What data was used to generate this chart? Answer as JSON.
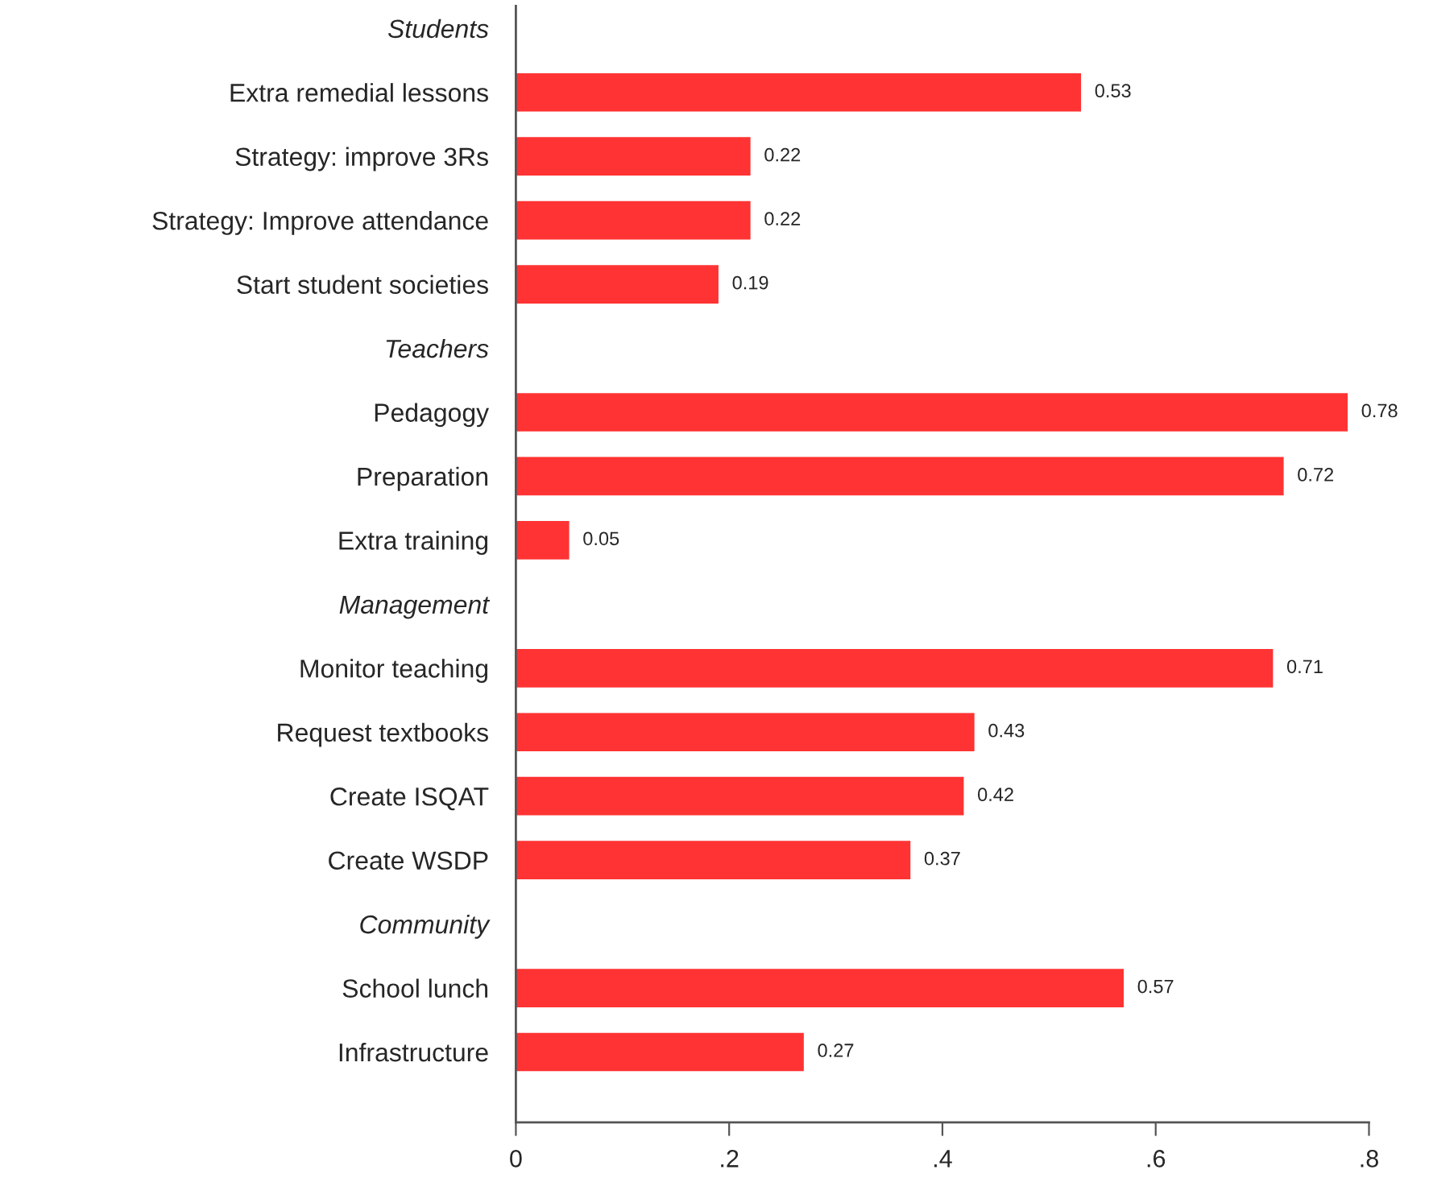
{
  "chart_data": {
    "type": "bar",
    "orientation": "horizontal",
    "categories": [
      "Students",
      "Extra remedial lessons",
      "Strategy: improve 3Rs",
      "Strategy: Improve attendance",
      "Start student societies",
      "Teachers",
      "Pedagogy",
      "Preparation",
      "Extra training",
      "Management",
      "Monitor teaching",
      "Request textbooks",
      "Create ISQAT",
      "Create WSDP",
      "Community",
      "School lunch",
      "Infrastructure"
    ],
    "values": [
      null,
      0.53,
      0.22,
      0.22,
      0.19,
      null,
      0.78,
      0.72,
      0.05,
      null,
      0.71,
      0.43,
      0.42,
      0.37,
      null,
      0.57,
      0.27
    ],
    "color": "#ff3333",
    "xlim": [
      0,
      0.8
    ],
    "xticks": [
      0,
      {
        "value": 0.2,
        "label": ".2"
      },
      {
        "value": 0.4,
        "label": ".4"
      },
      {
        "value": 0.6,
        "label": ".6"
      },
      {
        "value": 0.8,
        "label": ".8"
      }
    ],
    "data_labels": true,
    "grid": false,
    "legend": false
  }
}
